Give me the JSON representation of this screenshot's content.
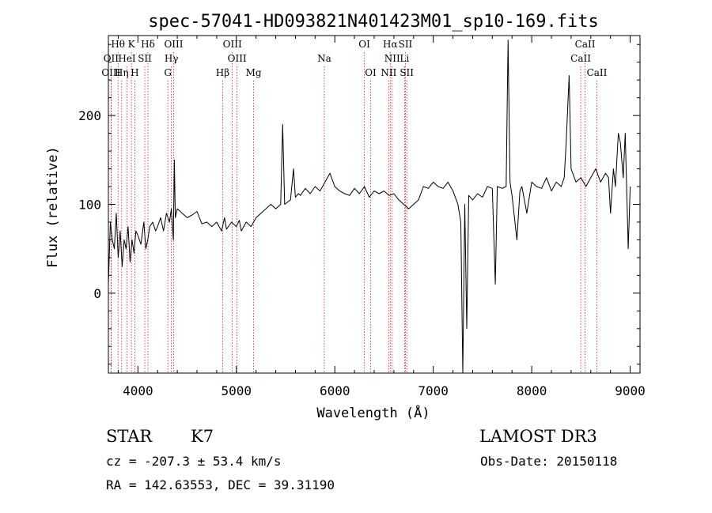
{
  "chart_data": {
    "type": "line",
    "title": "spec-57041-HD093821N401423M01_sp10-169.fits",
    "xlabel": "Wavelength (Å)",
    "ylabel": "Flux (relative)",
    "xlim": [
      3700,
      9100
    ],
    "ylim": [
      -90,
      290
    ],
    "x_ticks": [
      4000,
      5000,
      6000,
      7000,
      8000,
      9000
    ],
    "y_ticks": [
      0,
      100,
      200
    ],
    "grid": false,
    "legend": "none",
    "line_color": "#000000",
    "marker_color": "#cc0000",
    "spectral_lines": [
      {
        "label": "Hθ",
        "x": 3798,
        "row": 0
      },
      {
        "label": "K",
        "x": 3934,
        "row": 0
      },
      {
        "label": "Hδ",
        "x": 4102,
        "row": 0
      },
      {
        "label": "OIII",
        "x": 4363,
        "row": 0
      },
      {
        "label": "OIII",
        "x": 4959,
        "row": 0
      },
      {
        "label": "OI",
        "x": 6300,
        "row": 0
      },
      {
        "label": "Hα",
        "x": 6563,
        "row": 0
      },
      {
        "label": "SII",
        "x": 6717,
        "row": 0
      },
      {
        "label": "CaII",
        "x": 8542,
        "row": 0
      },
      {
        "label": "OII",
        "x": 3727,
        "row": 1
      },
      {
        "label": "HeI",
        "x": 3889,
        "row": 1
      },
      {
        "label": "SII",
        "x": 4070,
        "row": 1
      },
      {
        "label": "Hγ",
        "x": 4340,
        "row": 1
      },
      {
        "label": "OIII",
        "x": 5007,
        "row": 1
      },
      {
        "label": "Na",
        "x": 5893,
        "row": 1
      },
      {
        "label": "NII",
        "x": 6583,
        "row": 1
      },
      {
        "label": "Li",
        "x": 6708,
        "row": 1
      },
      {
        "label": "CaII",
        "x": 8498,
        "row": 1
      },
      {
        "label": "OIII",
        "x": 3727,
        "row": 2
      },
      {
        "label": "Hη",
        "x": 3835,
        "row": 2
      },
      {
        "label": "H",
        "x": 3968,
        "row": 2
      },
      {
        "label": "G",
        "x": 4304,
        "row": 2
      },
      {
        "label": "Hβ",
        "x": 4861,
        "row": 2
      },
      {
        "label": "Mg",
        "x": 5175,
        "row": 2
      },
      {
        "label": "OI",
        "x": 6364,
        "row": 2
      },
      {
        "label": "NII",
        "x": 6548,
        "row": 2
      },
      {
        "label": "SII",
        "x": 6731,
        "row": 2
      },
      {
        "label": "CaII",
        "x": 8662,
        "row": 2
      }
    ],
    "spectrum": {
      "x": [
        3700,
        3720,
        3740,
        3760,
        3780,
        3800,
        3820,
        3840,
        3860,
        3880,
        3900,
        3920,
        3940,
        3960,
        3980,
        4000,
        4030,
        4060,
        4080,
        4100,
        4120,
        4150,
        4180,
        4200,
        4230,
        4260,
        4290,
        4320,
        4340,
        4360,
        4370,
        4380,
        4400,
        4450,
        4500,
        4550,
        4600,
        4650,
        4700,
        4750,
        4800,
        4850,
        4880,
        4900,
        4950,
        5000,
        5030,
        5050,
        5100,
        5150,
        5200,
        5250,
        5300,
        5350,
        5400,
        5450,
        5470,
        5490,
        5550,
        5580,
        5600,
        5630,
        5650,
        5700,
        5750,
        5800,
        5850,
        5900,
        5950,
        6000,
        6050,
        6100,
        6150,
        6200,
        6250,
        6300,
        6350,
        6400,
        6450,
        6500,
        6550,
        6600,
        6650,
        6700,
        6750,
        6800,
        6850,
        6900,
        6950,
        7000,
        7050,
        7100,
        7150,
        7200,
        7250,
        7280,
        7300,
        7320,
        7340,
        7360,
        7400,
        7450,
        7500,
        7550,
        7600,
        7630,
        7650,
        7700,
        7740,
        7760,
        7780,
        7800,
        7850,
        7880,
        7900,
        7950,
        8000,
        8050,
        8100,
        8150,
        8200,
        8250,
        8300,
        8330,
        8350,
        8380,
        8400,
        8450,
        8500,
        8550,
        8600,
        8650,
        8700,
        8750,
        8780,
        8800,
        8830,
        8850,
        8880,
        8900,
        8930,
        8950,
        8980,
        9000
      ],
      "y": [
        10,
        80,
        60,
        50,
        90,
        40,
        70,
        30,
        60,
        50,
        75,
        35,
        60,
        45,
        70,
        65,
        55,
        80,
        50,
        60,
        75,
        80,
        70,
        75,
        85,
        70,
        90,
        80,
        95,
        60,
        150,
        85,
        95,
        90,
        85,
        88,
        92,
        78,
        80,
        75,
        80,
        70,
        85,
        72,
        80,
        75,
        82,
        70,
        80,
        75,
        85,
        90,
        95,
        100,
        95,
        100,
        190,
        100,
        105,
        140,
        108,
        112,
        110,
        118,
        112,
        120,
        115,
        125,
        135,
        120,
        115,
        112,
        110,
        118,
        112,
        120,
        108,
        115,
        112,
        115,
        110,
        112,
        105,
        100,
        95,
        100,
        105,
        120,
        118,
        125,
        120,
        118,
        125,
        115,
        100,
        80,
        -90,
        100,
        -40,
        110,
        105,
        112,
        108,
        120,
        118,
        10,
        120,
        118,
        120,
        285,
        125,
        110,
        60,
        115,
        120,
        90,
        125,
        120,
        118,
        130,
        115,
        125,
        120,
        130,
        170,
        245,
        140,
        125,
        130,
        120,
        130,
        140,
        125,
        135,
        130,
        90,
        140,
        120,
        180,
        170,
        130,
        180,
        50,
        120
      ]
    }
  },
  "footer": {
    "object_class": "STAR",
    "subclass": "K7",
    "survey": "LAMOST DR3",
    "redshift": "cz = -207.3 ± 53.4 km/s",
    "obs_date": "Obs-Date: 20150118",
    "coords": "RA = 142.63553, DEC =  39.31190"
  }
}
